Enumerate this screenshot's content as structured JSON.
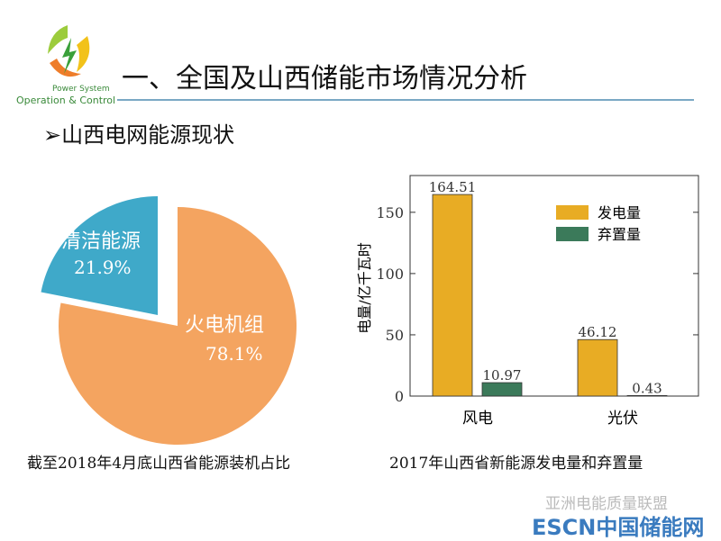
{
  "logo": {
    "line1": "Power System",
    "line2": "Operation & Control"
  },
  "header": {
    "title": "一、全国及山西储能市场情况分析",
    "subtitle": "山西电网能源现状",
    "bullet": "➢"
  },
  "chart_data": [
    {
      "type": "pie",
      "caption": "截至2018年4月底山西省能源装机占比",
      "slices": [
        {
          "label": "火电机组",
          "value": 78.1,
          "value_label": "78.1%",
          "color": "#f4a460"
        },
        {
          "label": "清洁能源",
          "value": 21.9,
          "value_label": "21.9%",
          "color": "#3fa9c9",
          "exploded": true
        }
      ]
    },
    {
      "type": "bar",
      "caption": "2017年山西省新能源发电量和弃置量",
      "ylabel": "电量/亿千瓦时",
      "ylim": [
        0,
        180
      ],
      "yticks": [
        0,
        50,
        100,
        150
      ],
      "categories": [
        "风电",
        "光伏"
      ],
      "series": [
        {
          "name": "发电量",
          "color": "#e8ac24",
          "values": [
            164.51,
            46.12
          ],
          "labels": [
            "164.51",
            "46.12"
          ]
        },
        {
          "name": "弃置量",
          "color": "#3b7a5a",
          "values": [
            10.97,
            0.43
          ],
          "labels": [
            "10.97",
            "0.43"
          ]
        }
      ],
      "legend": "top-right"
    }
  ],
  "watermark": {
    "wechat": "亚洲电能质量联盟",
    "site": "ESCN中国储能网"
  }
}
